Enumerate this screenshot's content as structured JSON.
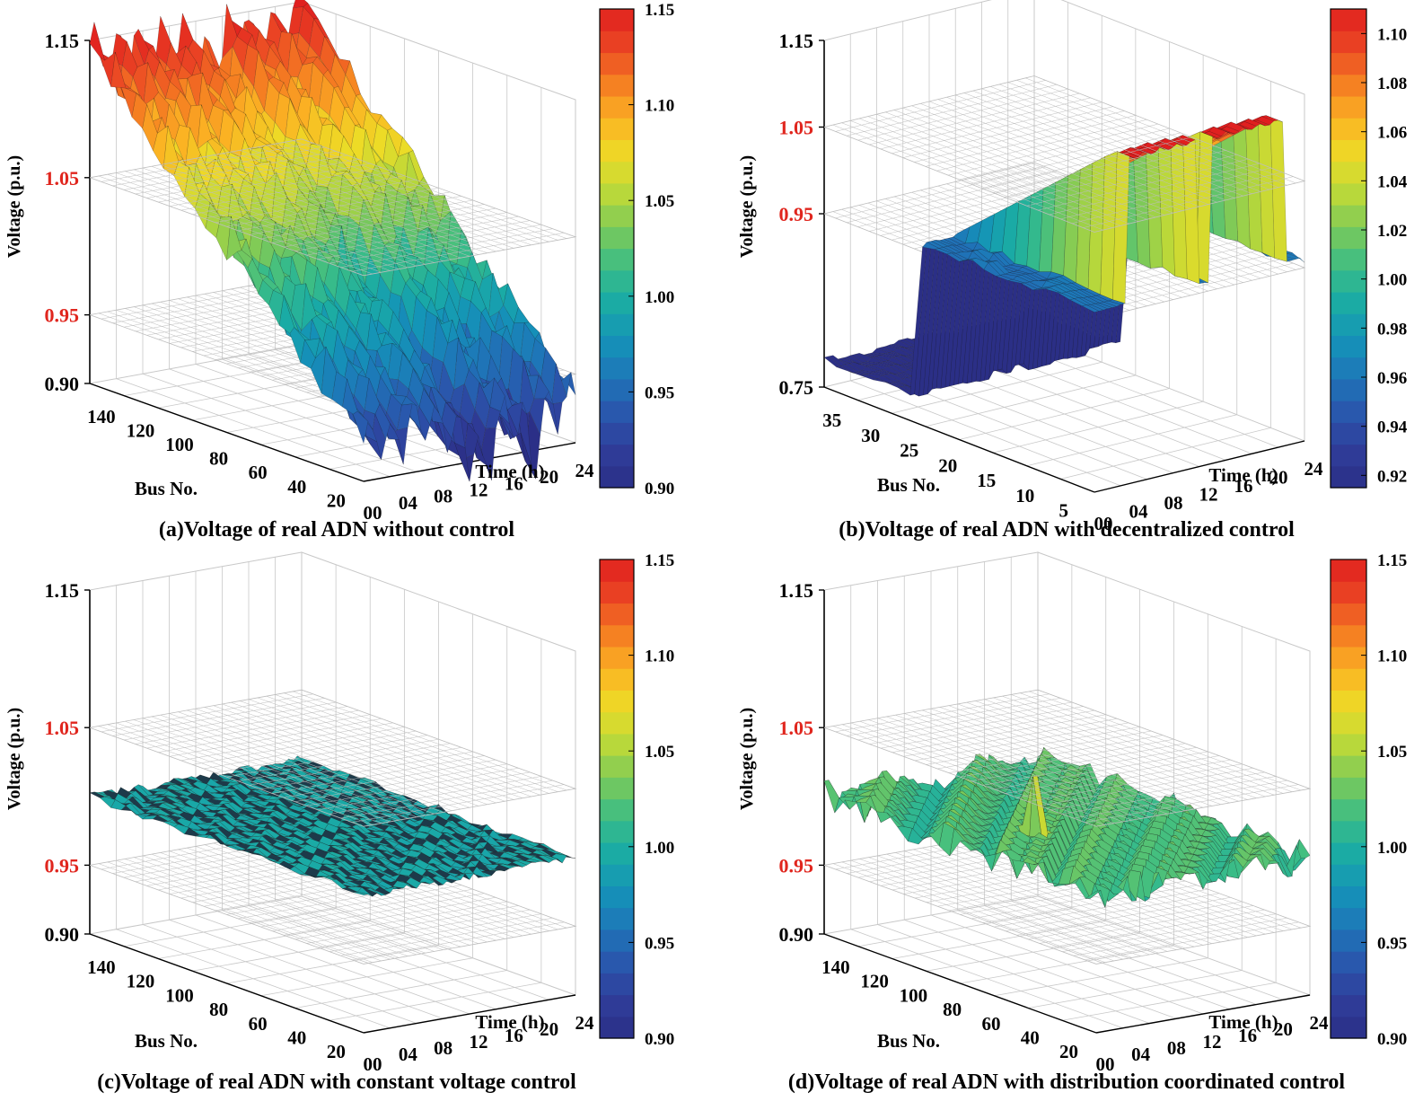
{
  "colors": {
    "limit_label": "#e0261e",
    "axis_label": "#000000",
    "grid": "#c8c8c8",
    "plane": "#bdbdbd",
    "mesh": "#1a1a1a",
    "colormap": [
      "#2b2f86",
      "#2f3c99",
      "#2a56ac",
      "#1e76b8",
      "#1493b8",
      "#1aaba5",
      "#3bbd86",
      "#7ac95a",
      "#b9d83a",
      "#eddc26",
      "#fbb323",
      "#f57d22",
      "#ea4424",
      "#e01f1f"
    ]
  },
  "chart_data": [
    {
      "id": "a",
      "type": "surface3d",
      "caption": "(a)Voltage of real ADN without control",
      "zlabel": "Voltage (p.u.)",
      "xlabel": "Bus No.",
      "ylabel": "Time (h)",
      "zticks": [
        "1.15",
        "1.05",
        "0.95",
        "0.90"
      ],
      "ztick_values": [
        1.15,
        1.05,
        0.95,
        0.9
      ],
      "limit_ticks": [
        "1.05",
        "0.95"
      ],
      "zlim": [
        0.9,
        1.15
      ],
      "xticks": [
        "140",
        "120",
        "100",
        "80",
        "60",
        "40",
        "20"
      ],
      "yticks": [
        "00",
        "04",
        "08",
        "12",
        "16",
        "20",
        "24"
      ],
      "colorbar_ticks": [
        "1.15",
        "1.10",
        "1.05",
        "1.00",
        "0.95",
        "0.90"
      ],
      "colorbar_range": [
        0.9,
        1.15
      ],
      "limit_planes": [
        1.05,
        0.95
      ],
      "voltage_profile": {
        "front_min": 0.93,
        "front_max": 1.14,
        "back_min": 0.94,
        "back_max": 1.1
      }
    },
    {
      "id": "b",
      "type": "surface3d",
      "caption": "(b)Voltage of real ADN with decentralized control",
      "zlabel": "Voltage (p.u.)",
      "xlabel": "Bus No.",
      "ylabel": "Time (h)",
      "zticks": [
        "1.15",
        "1.05",
        "0.95",
        "0.75"
      ],
      "ztick_values": [
        1.15,
        1.05,
        0.95,
        0.75
      ],
      "limit_ticks": [
        "1.05",
        "0.95"
      ],
      "zlim": [
        0.75,
        1.15
      ],
      "xticks": [
        "35",
        "30",
        "25",
        "20",
        "15",
        "10",
        "5"
      ],
      "yticks": [
        "00",
        "04",
        "08",
        "12",
        "16",
        "20",
        "24"
      ],
      "colorbar_ticks": [
        "1.10",
        "1.08",
        "1.06",
        "1.04",
        "1.02",
        "1.00",
        "0.98",
        "0.96",
        "0.94",
        "0.92"
      ],
      "colorbar_range": [
        0.915,
        1.11
      ],
      "limit_planes": [
        1.05,
        0.95
      ],
      "voltage_profile": {
        "low_block": 0.78,
        "high_ridge": 1.13
      }
    },
    {
      "id": "c",
      "type": "surface3d",
      "caption": "(c)Voltage of real ADN with constant voltage control",
      "zlabel": "Voltage (p.u.)",
      "xlabel": "Bus No.",
      "ylabel": "Time (h)",
      "zticks": [
        "1.15",
        "1.05",
        "0.95",
        "0.90"
      ],
      "ztick_values": [
        1.15,
        1.05,
        0.95,
        0.9
      ],
      "limit_ticks": [
        "1.05",
        "0.95"
      ],
      "zlim": [
        0.9,
        1.15
      ],
      "xticks": [
        "140",
        "120",
        "100",
        "80",
        "60",
        "40",
        "20"
      ],
      "yticks": [
        "00",
        "04",
        "08",
        "12",
        "16",
        "20",
        "24"
      ],
      "colorbar_ticks": [
        "1.15",
        "1.10",
        "1.05",
        "1.00",
        "0.95",
        "0.90"
      ],
      "colorbar_range": [
        0.9,
        1.15
      ],
      "limit_planes": [
        1.05,
        0.95
      ],
      "voltage_profile": {
        "flat_level": 1.0,
        "ripple": 0.006
      }
    },
    {
      "id": "d",
      "type": "surface3d",
      "caption": "(d)Voltage of real ADN with distribution coordinated control",
      "zlabel": "Voltage (p.u.)",
      "xlabel": "Bus No.",
      "ylabel": "Time (h)",
      "zticks": [
        "1.15",
        "1.05",
        "0.95",
        "0.90"
      ],
      "ztick_values": [
        1.15,
        1.05,
        0.95,
        0.9
      ],
      "limit_ticks": [
        "1.05",
        "0.95"
      ],
      "zlim": [
        0.9,
        1.15
      ],
      "xticks": [
        "140",
        "120",
        "100",
        "80",
        "60",
        "40",
        "20"
      ],
      "yticks": [
        "00",
        "04",
        "08",
        "12",
        "16",
        "20",
        "24"
      ],
      "colorbar_ticks": [
        "1.15",
        "1.10",
        "1.05",
        "1.00",
        "0.95",
        "0.90"
      ],
      "colorbar_range": [
        0.9,
        1.15
      ],
      "limit_planes": [
        1.05,
        0.95
      ],
      "voltage_profile": {
        "flat_level": 1.0,
        "ripple": 0.012
      }
    }
  ]
}
